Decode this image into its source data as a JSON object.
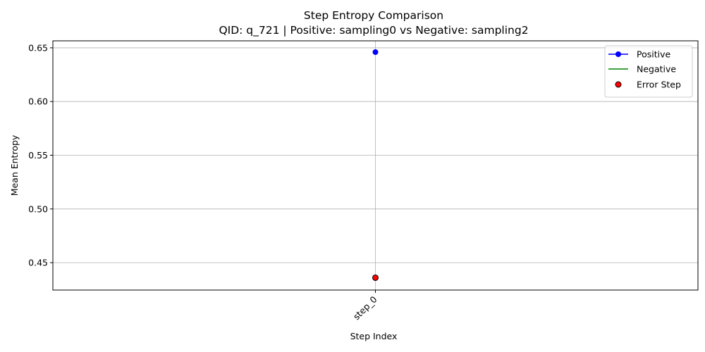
{
  "chart_data": {
    "type": "line",
    "title": "Step Entropy Comparison",
    "subtitle": "QID: q_721 | Positive: sampling0 vs Negative: sampling2",
    "xlabel": "Step Index",
    "ylabel": "Mean Entropy",
    "categories": [
      "step_0"
    ],
    "ylim": [
      0.4245,
      0.6565
    ],
    "yticks": [
      0.45,
      0.5,
      0.55,
      0.6,
      0.65
    ],
    "ytick_labels": [
      "0.45",
      "0.50",
      "0.55",
      "0.60",
      "0.65"
    ],
    "grid": true,
    "legend_position": "top-right",
    "series": [
      {
        "name": "Positive",
        "values": [
          0.646
        ],
        "color": "#0000ff",
        "style": "line-marker"
      },
      {
        "name": "Negative",
        "values": [
          0.436
        ],
        "color": "#008000",
        "style": "line"
      }
    ],
    "error_steps": {
      "name": "Error Step",
      "points": [
        {
          "x": "step_0",
          "y": 0.436
        }
      ],
      "color": "#ff0000",
      "edge_color": "#000000"
    }
  }
}
